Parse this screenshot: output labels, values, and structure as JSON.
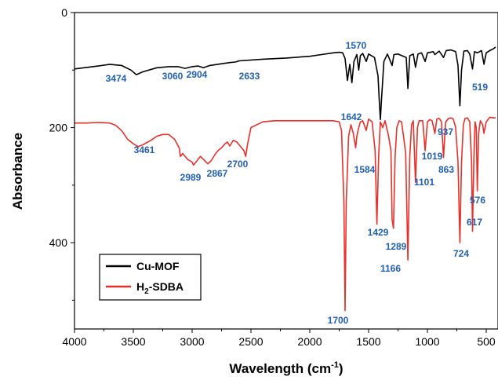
{
  "chart_data": {
    "type": "line",
    "xlabel": "Wavelength (cm⁻¹)",
    "ylabel": "Absorbance",
    "xlim": [
      4000,
      400
    ],
    "ylim": [
      0,
      550
    ],
    "y_inverted": true,
    "x_ticks": [
      "4000",
      "3500",
      "3000",
      "2500",
      "2000",
      "1500",
      "1000",
      "500"
    ],
    "y_ticks": [
      "0",
      "200",
      "400"
    ],
    "legend_position": "bottom-left",
    "series": [
      {
        "name": "Cu-MOF",
        "color": "#000000",
        "points": [
          [
            4000,
            98
          ],
          [
            3800,
            93
          ],
          [
            3700,
            90
          ],
          [
            3600,
            92
          ],
          [
            3520,
            100
          ],
          [
            3474,
            108
          ],
          [
            3420,
            103
          ],
          [
            3300,
            96
          ],
          [
            3200,
            94
          ],
          [
            3120,
            94
          ],
          [
            3060,
            97
          ],
          [
            3000,
            94
          ],
          [
            2950,
            93
          ],
          [
            2904,
            96
          ],
          [
            2850,
            92
          ],
          [
            2750,
            89
          ],
          [
            2680,
            87
          ],
          [
            2633,
            86
          ],
          [
            2600,
            84
          ],
          [
            2400,
            81
          ],
          [
            2200,
            79
          ],
          [
            2000,
            76
          ],
          [
            1900,
            73
          ],
          [
            1800,
            70
          ],
          [
            1750,
            69
          ],
          [
            1720,
            70
          ],
          [
            1700,
            80
          ],
          [
            1680,
            118
          ],
          [
            1660,
            90
          ],
          [
            1642,
            122
          ],
          [
            1625,
            85
          ],
          [
            1600,
            73
          ],
          [
            1584,
            100
          ],
          [
            1570,
            75
          ],
          [
            1550,
            71
          ],
          [
            1520,
            85
          ],
          [
            1500,
            72
          ],
          [
            1450,
            78
          ],
          [
            1420,
            110
          ],
          [
            1410,
            150
          ],
          [
            1400,
            186
          ],
          [
            1390,
            150
          ],
          [
            1370,
            85
          ],
          [
            1340,
            72
          ],
          [
            1300,
            92
          ],
          [
            1285,
            73
          ],
          [
            1250,
            72
          ],
          [
            1180,
            78
          ],
          [
            1166,
            132
          ],
          [
            1150,
            75
          ],
          [
            1120,
            72
          ],
          [
            1101,
            95
          ],
          [
            1080,
            72
          ],
          [
            1050,
            70
          ],
          [
            1019,
            85
          ],
          [
            1000,
            70
          ],
          [
            950,
            68
          ],
          [
            937,
            73
          ],
          [
            900,
            67
          ],
          [
            863,
            78
          ],
          [
            840,
            66
          ],
          [
            800,
            65
          ],
          [
            760,
            68
          ],
          [
            740,
            92
          ],
          [
            724,
            162
          ],
          [
            710,
            100
          ],
          [
            690,
            67
          ],
          [
            660,
            66
          ],
          [
            640,
            72
          ],
          [
            617,
            98
          ],
          [
            600,
            68
          ],
          [
            576,
            70
          ],
          [
            540,
            66
          ],
          [
            519,
            90
          ],
          [
            500,
            70
          ],
          [
            470,
            66
          ],
          [
            440,
            63
          ],
          [
            420,
            60
          ]
        ]
      },
      {
        "name": "H₂-SDBA",
        "color": "#e8302a",
        "points": [
          [
            4000,
            192
          ],
          [
            3900,
            192
          ],
          [
            3800,
            191
          ],
          [
            3700,
            192
          ],
          [
            3650,
            196
          ],
          [
            3600,
            205
          ],
          [
            3550,
            220
          ],
          [
            3500,
            228
          ],
          [
            3461,
            233
          ],
          [
            3420,
            230
          ],
          [
            3350,
            222
          ],
          [
            3300,
            215
          ],
          [
            3250,
            212
          ],
          [
            3200,
            212
          ],
          [
            3150,
            220
          ],
          [
            3110,
            235
          ],
          [
            3100,
            250
          ],
          [
            3080,
            245
          ],
          [
            3040,
            255
          ],
          [
            3000,
            260
          ],
          [
            2989,
            265
          ],
          [
            2960,
            258
          ],
          [
            2930,
            250
          ],
          [
            2900,
            256
          ],
          [
            2867,
            263
          ],
          [
            2840,
            258
          ],
          [
            2800,
            245
          ],
          [
            2780,
            240
          ],
          [
            2750,
            235
          ],
          [
            2720,
            228
          ],
          [
            2700,
            225
          ],
          [
            2680,
            232
          ],
          [
            2650,
            222
          ],
          [
            2620,
            225
          ],
          [
            2580,
            235
          ],
          [
            2560,
            240
          ],
          [
            2545,
            250
          ],
          [
            2530,
            230
          ],
          [
            2500,
            200
          ],
          [
            2400,
            190
          ],
          [
            2300,
            188
          ],
          [
            2200,
            188
          ],
          [
            2100,
            188
          ],
          [
            2000,
            188
          ],
          [
            1900,
            188
          ],
          [
            1800,
            188
          ],
          [
            1750,
            190
          ],
          [
            1730,
            205
          ],
          [
            1710,
            330
          ],
          [
            1700,
            518
          ],
          [
            1690,
            330
          ],
          [
            1670,
            215
          ],
          [
            1650,
            195
          ],
          [
            1630,
            210
          ],
          [
            1610,
            235
          ],
          [
            1600,
            215
          ],
          [
            1584,
            200
          ],
          [
            1570,
            190
          ],
          [
            1550,
            188
          ],
          [
            1520,
            205
          ],
          [
            1500,
            185
          ],
          [
            1470,
            190
          ],
          [
            1445,
            240
          ],
          [
            1429,
            368
          ],
          [
            1415,
            250
          ],
          [
            1400,
            190
          ],
          [
            1380,
            200
          ],
          [
            1360,
            188
          ],
          [
            1330,
            215
          ],
          [
            1310,
            240
          ],
          [
            1300,
            360
          ],
          [
            1289,
            375
          ],
          [
            1275,
            250
          ],
          [
            1260,
            200
          ],
          [
            1240,
            188
          ],
          [
            1220,
            190
          ],
          [
            1200,
            220
          ],
          [
            1185,
            245
          ],
          [
            1166,
            430
          ],
          [
            1150,
            250
          ],
          [
            1135,
            195
          ],
          [
            1120,
            188
          ],
          [
            1101,
            295
          ],
          [
            1085,
            200
          ],
          [
            1070,
            188
          ],
          [
            1040,
            188
          ],
          [
            1019,
            240
          ],
          [
            1000,
            190
          ],
          [
            980,
            186
          ],
          [
            960,
            188
          ],
          [
            937,
            210
          ],
          [
            920,
            185
          ],
          [
            900,
            184
          ],
          [
            880,
            190
          ],
          [
            863,
            252
          ],
          [
            845,
            190
          ],
          [
            820,
            184
          ],
          [
            800,
            183
          ],
          [
            780,
            185
          ],
          [
            760,
            200
          ],
          [
            740,
            260
          ],
          [
            724,
            400
          ],
          [
            710,
            260
          ],
          [
            695,
            195
          ],
          [
            680,
            184
          ],
          [
            660,
            183
          ],
          [
            640,
            190
          ],
          [
            625,
            260
          ],
          [
            617,
            380
          ],
          [
            605,
            250
          ],
          [
            595,
            190
          ],
          [
            585,
            200
          ],
          [
            576,
            310
          ],
          [
            565,
            210
          ],
          [
            550,
            188
          ],
          [
            530,
            195
          ],
          [
            519,
            210
          ],
          [
            500,
            190
          ],
          [
            470,
            182
          ],
          [
            440,
            183
          ],
          [
            420,
            183
          ]
        ]
      }
    ],
    "annotations": [
      {
        "text": "3474",
        "series": "Cu-MOF"
      },
      {
        "text": "3060",
        "series": "Cu-MOF"
      },
      {
        "text": "2904",
        "series": "Cu-MOF"
      },
      {
        "text": "2633",
        "series": "Cu-MOF"
      },
      {
        "text": "1570",
        "series": "Cu-MOF"
      },
      {
        "text": "1642",
        "series": "Cu-MOF"
      },
      {
        "text": "519",
        "series": "Cu-MOF"
      },
      {
        "text": "937",
        "series": "H₂-SDBA"
      },
      {
        "text": "3461",
        "series": "H₂-SDBA"
      },
      {
        "text": "2989",
        "series": "H₂-SDBA"
      },
      {
        "text": "2867",
        "series": "H₂-SDBA"
      },
      {
        "text": "2700",
        "series": "H₂-SDBA"
      },
      {
        "text": "1584",
        "series": "H₂-SDBA"
      },
      {
        "text": "1019",
        "series": "H₂-SDBA"
      },
      {
        "text": "863",
        "series": "H₂-SDBA"
      },
      {
        "text": "1101",
        "series": "H₂-SDBA"
      },
      {
        "text": "576",
        "series": "H₂-SDBA"
      },
      {
        "text": "1429",
        "series": "H₂-SDBA"
      },
      {
        "text": "1289",
        "series": "H₂-SDBA"
      },
      {
        "text": "617",
        "series": "H₂-SDBA"
      },
      {
        "text": "724",
        "series": "H₂-SDBA"
      },
      {
        "text": "1166",
        "series": "H₂-SDBA"
      },
      {
        "text": "1700",
        "series": "H₂-SDBA"
      }
    ],
    "legend": [
      {
        "series": "Cu-MOF",
        "label": "Cu-MOF",
        "color": "#000000"
      },
      {
        "series": "H₂-SDBA",
        "label_main": "H",
        "label_sub": "2",
        "label_rest": "-SDBA",
        "color": "#e8302a"
      }
    ]
  }
}
